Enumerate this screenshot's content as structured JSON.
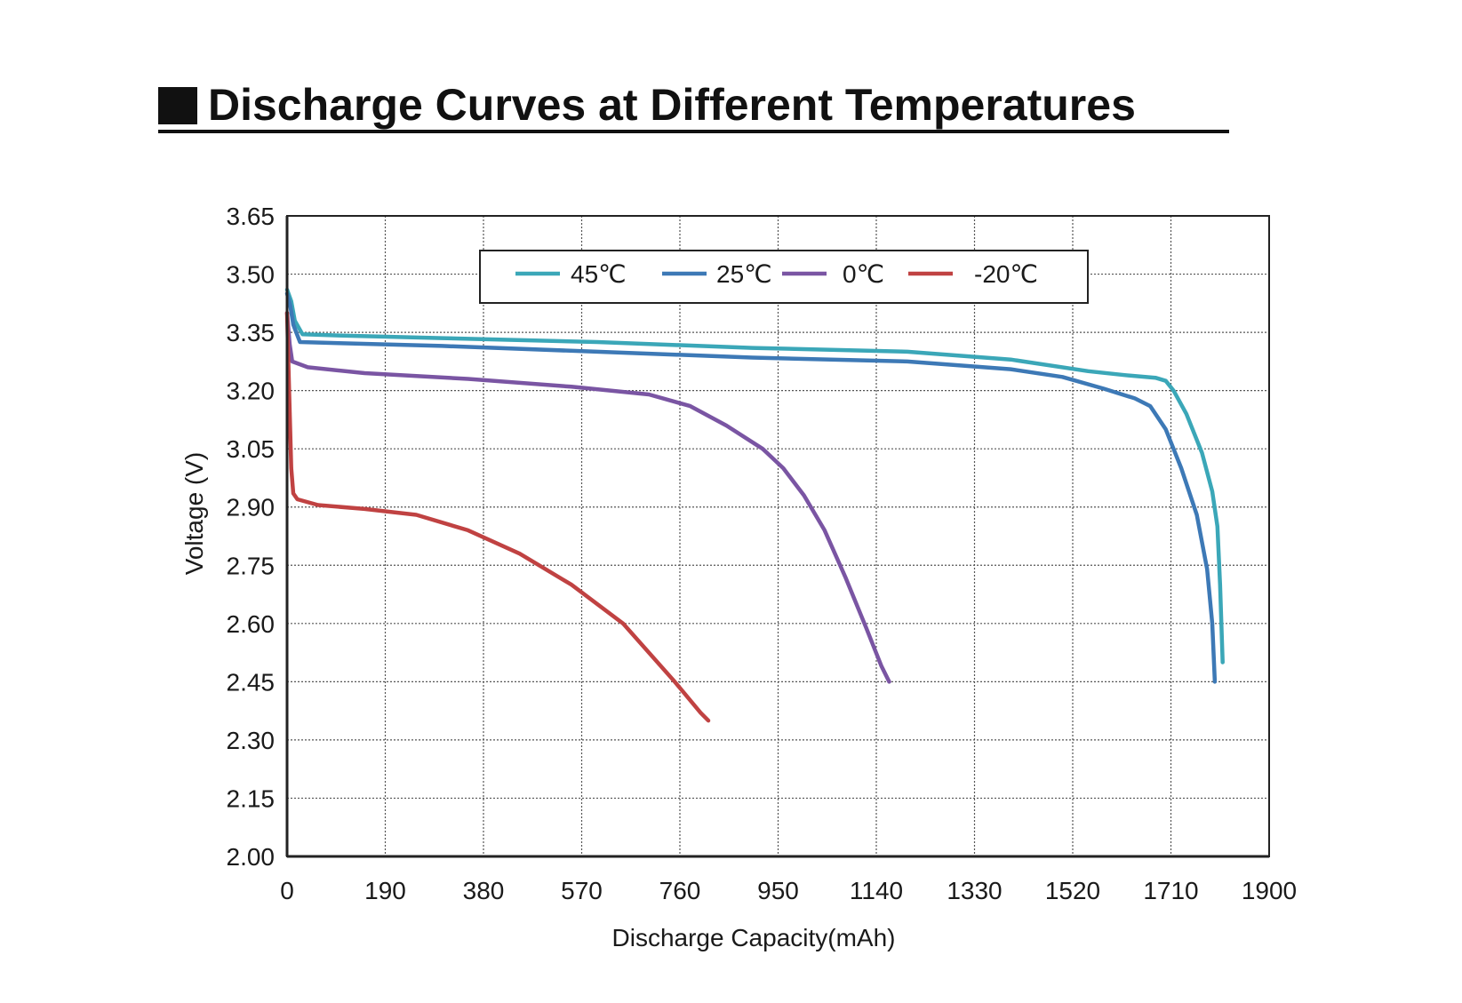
{
  "title": "Discharge Curves at Different Temperatures",
  "chart_data": {
    "type": "line",
    "title": "Discharge Curves at Different Temperatures",
    "xlabel": "Discharge Capacity(mAh)",
    "ylabel": "Voltage (V)",
    "xlim": [
      0,
      1900
    ],
    "ylim": [
      2.0,
      3.65
    ],
    "x_ticks": [
      "0",
      "190",
      "380",
      "570",
      "760",
      "950",
      "1140",
      "1330",
      "1520",
      "1710",
      "1900"
    ],
    "y_ticks": [
      "3.65",
      "3.50",
      "3.35",
      "3.20",
      "3.05",
      "2.90",
      "2.75",
      "2.60",
      "2.45",
      "2.30",
      "2.15",
      "2.00"
    ],
    "grid": true,
    "legend_position": "top",
    "series": [
      {
        "name": "45℃",
        "color": "#3ba7b8",
        "x": [
          0,
          8,
          15,
          30,
          100,
          300,
          600,
          900,
          1200,
          1400,
          1550,
          1620,
          1680,
          1700,
          1715,
          1740,
          1770,
          1790,
          1800,
          1805,
          1810
        ],
        "y": [
          3.46,
          3.43,
          3.38,
          3.345,
          3.342,
          3.335,
          3.325,
          3.31,
          3.3,
          3.28,
          3.25,
          3.24,
          3.233,
          3.225,
          3.2,
          3.14,
          3.04,
          2.94,
          2.85,
          2.7,
          2.5
        ]
      },
      {
        "name": "25℃",
        "color": "#3d79b6",
        "x": [
          0,
          6,
          12,
          25,
          100,
          300,
          600,
          900,
          1200,
          1400,
          1500,
          1580,
          1640,
          1670,
          1700,
          1730,
          1760,
          1780,
          1790,
          1795
        ],
        "y": [
          3.45,
          3.42,
          3.37,
          3.325,
          3.322,
          3.315,
          3.3,
          3.285,
          3.275,
          3.255,
          3.235,
          3.205,
          3.18,
          3.16,
          3.1,
          3.0,
          2.88,
          2.74,
          2.6,
          2.45
        ]
      },
      {
        "name": "0℃",
        "color": "#7a55a3",
        "x": [
          0,
          5,
          10,
          40,
          150,
          350,
          550,
          700,
          780,
          850,
          920,
          960,
          1000,
          1040,
          1080,
          1120,
          1150,
          1165
        ],
        "y": [
          3.4,
          3.32,
          3.275,
          3.26,
          3.245,
          3.23,
          3.21,
          3.19,
          3.16,
          3.11,
          3.05,
          3.0,
          2.93,
          2.84,
          2.72,
          2.59,
          2.49,
          2.45
        ]
      },
      {
        "name": "-20℃",
        "color": "#c04242",
        "x": [
          0,
          4,
          8,
          12,
          20,
          60,
          150,
          250,
          350,
          450,
          550,
          650,
          750,
          800,
          815
        ],
        "y": [
          3.4,
          3.2,
          3.0,
          2.935,
          2.92,
          2.905,
          2.895,
          2.88,
          2.84,
          2.78,
          2.7,
          2.6,
          2.45,
          2.37,
          2.35
        ]
      }
    ]
  }
}
